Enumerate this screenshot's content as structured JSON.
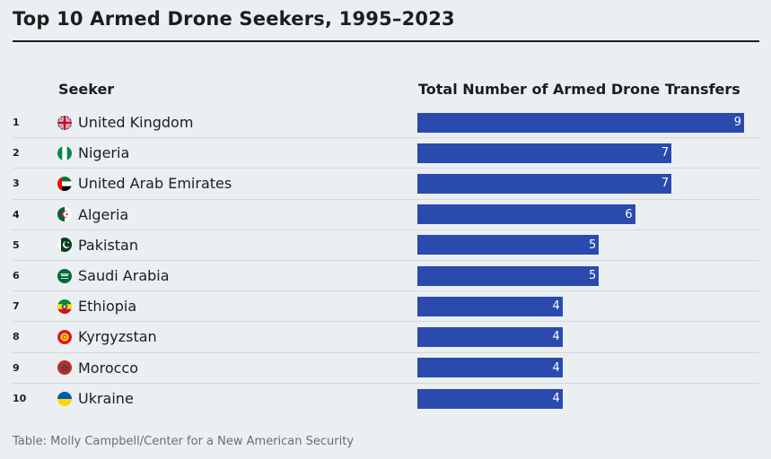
{
  "title": "Top 10 Armed Drone Seekers, 1995–2023",
  "headers": {
    "seeker": "Seeker",
    "total": "Total Number of Armed Drone Transfers"
  },
  "source": "Table: Molly Campbell/Center for a New American Security",
  "chart_data": {
    "type": "bar",
    "orientation": "horizontal",
    "xlim": [
      0,
      9
    ],
    "bar_color": "#2a4aad",
    "categories": [
      "United Kingdom",
      "Nigeria",
      "United Arab Emirates",
      "Algeria",
      "Pakistan",
      "Saudi Arabia",
      "Ethiopia",
      "Kyrgyzstan",
      "Morocco",
      "Ukraine"
    ],
    "values": [
      9,
      7,
      7,
      6,
      5,
      5,
      4,
      4,
      4,
      4
    ]
  },
  "rows": [
    {
      "rank": "1",
      "country": "United Kingdom",
      "value": 9,
      "flag": "uk-flag-icon"
    },
    {
      "rank": "2",
      "country": "Nigeria",
      "value": 7,
      "flag": "nigeria-flag-icon"
    },
    {
      "rank": "3",
      "country": "United Arab Emirates",
      "value": 7,
      "flag": "uae-flag-icon"
    },
    {
      "rank": "4",
      "country": "Algeria",
      "value": 6,
      "flag": "algeria-flag-icon"
    },
    {
      "rank": "5",
      "country": "Pakistan",
      "value": 5,
      "flag": "pakistan-flag-icon"
    },
    {
      "rank": "6",
      "country": "Saudi Arabia",
      "value": 5,
      "flag": "saudi-arabia-flag-icon"
    },
    {
      "rank": "7",
      "country": "Ethiopia",
      "value": 4,
      "flag": "ethiopia-flag-icon"
    },
    {
      "rank": "8",
      "country": "Kyrgyzstan",
      "value": 4,
      "flag": "kyrgyzstan-flag-icon"
    },
    {
      "rank": "9",
      "country": "Morocco",
      "value": 4,
      "flag": "morocco-flag-icon"
    },
    {
      "rank": "10",
      "country": "Ukraine",
      "value": 4,
      "flag": "ukraine-flag-icon"
    }
  ]
}
